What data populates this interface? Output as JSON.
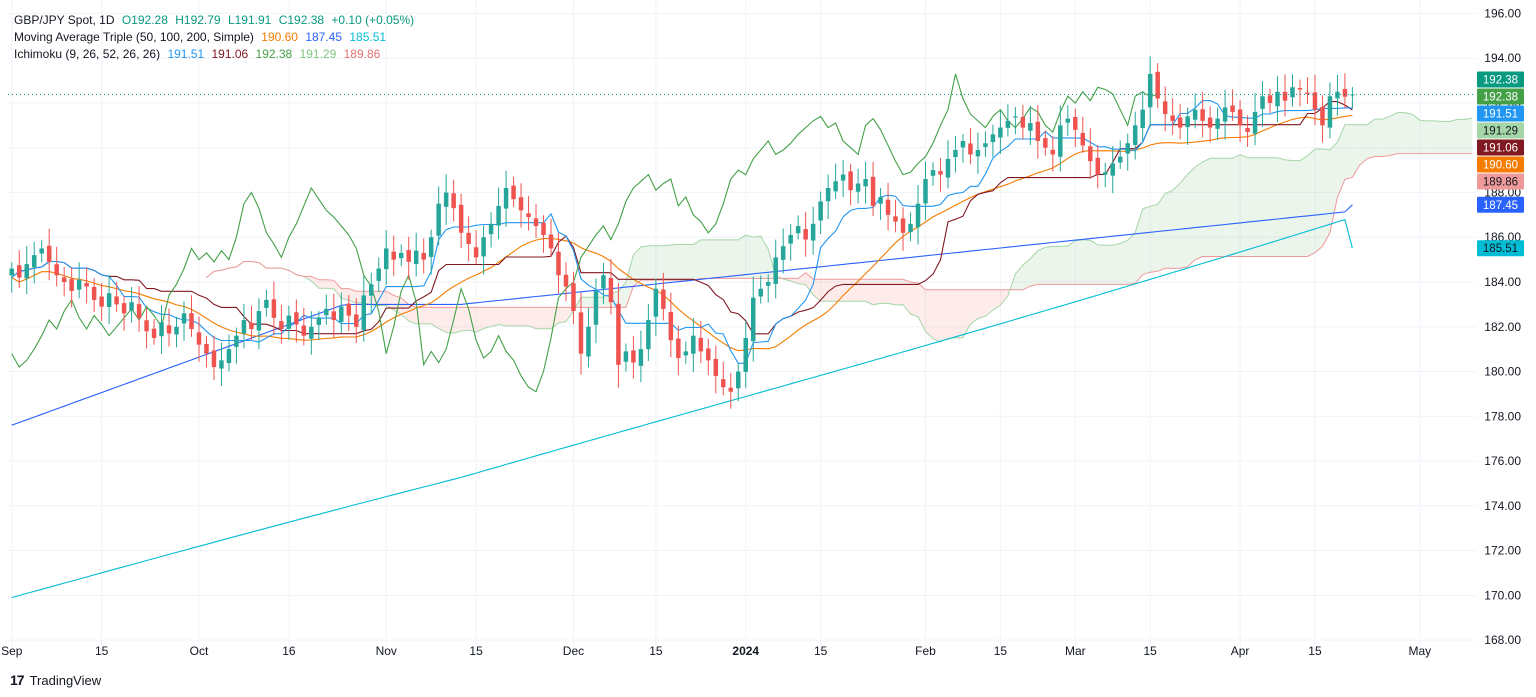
{
  "legend": {
    "symbol_line": {
      "symbol": "GBP/JPY Spot, 1D",
      "open": "O192.28",
      "high": "H192.79",
      "low": "L191.91",
      "close": "C192.38",
      "change": "+0.10 (+0.05%)"
    },
    "ma_line": {
      "title": "Moving Average Triple (50, 100, 200, Simple)",
      "v1": "190.60",
      "v2": "187.45",
      "v3": "185.51"
    },
    "ichimoku_line": {
      "title": "Ichimoku (9, 26, 52, 26, 26)",
      "v1": "191.51",
      "v2": "191.06",
      "v3": "192.38",
      "v4": "191.29",
      "v5": "189.86"
    }
  },
  "brand": {
    "logo": "17",
    "name": "TradingView"
  },
  "colors": {
    "up": "#26a69a",
    "down": "#ef5350",
    "ma50": "#f57c00",
    "ma100": "#2962ff",
    "ma200": "#00bcd4",
    "tenkan": "#2196f3",
    "kijun": "#801922",
    "chikou": "#43a047",
    "spanA": "#a5d6a7",
    "spanB": "#ef9a9a",
    "last": "#089981"
  },
  "chart_data": {
    "type": "candlestick",
    "title": "GBP/JPY Spot, 1D",
    "ylim": [
      167.2,
      196.6
    ],
    "y_ticks": [
      "196.00",
      "194.00",
      "192.00",
      "190.00",
      "188.00",
      "186.00",
      "184.00",
      "182.00",
      "180.00",
      "178.00",
      "176.00",
      "174.00",
      "172.00",
      "170.00",
      "168.00"
    ],
    "x_ticks": [
      {
        "label": "Sep",
        "bold": false,
        "day": 0
      },
      {
        "label": "15",
        "bold": false,
        "day": 12
      },
      {
        "label": "Oct",
        "bold": false,
        "day": 25
      },
      {
        "label": "16",
        "bold": false,
        "day": 37
      },
      {
        "label": "Nov",
        "bold": false,
        "day": 50
      },
      {
        "label": "15",
        "bold": false,
        "day": 62
      },
      {
        "label": "Dec",
        "bold": false,
        "day": 75
      },
      {
        "label": "15",
        "bold": false,
        "day": 86
      },
      {
        "label": "2024",
        "bold": true,
        "day": 98
      },
      {
        "label": "15",
        "bold": false,
        "day": 108
      },
      {
        "label": "Feb",
        "bold": false,
        "day": 122
      },
      {
        "label": "15",
        "bold": false,
        "day": 132
      },
      {
        "label": "Mar",
        "bold": false,
        "day": 142
      },
      {
        "label": "15",
        "bold": false,
        "day": 152
      },
      {
        "label": "Apr",
        "bold": false,
        "day": 164
      },
      {
        "label": "15",
        "bold": false,
        "day": 174
      },
      {
        "label": "May",
        "bold": false,
        "day": 188
      }
    ],
    "n_days": 196,
    "last_close": 192.38,
    "price_tags": [
      {
        "value": "192.38",
        "price": 192.38,
        "color": "#089981",
        "text": "#ffffff",
        "stack": 0
      },
      {
        "value": "192.38",
        "price": 192.38,
        "color": "#43a047",
        "text": "#ffffff",
        "stack": 1
      },
      {
        "value": "191.51",
        "price": 191.51,
        "color": "#2196f3",
        "text": "#ffffff",
        "stack": 2
      },
      {
        "value": "191.29",
        "price": 191.29,
        "color": "#a5d6a7",
        "text": "#131722",
        "stack": 3
      },
      {
        "value": "191.06",
        "price": 191.06,
        "color": "#801922",
        "text": "#ffffff",
        "stack": 4
      },
      {
        "value": "190.60",
        "price": 190.6,
        "color": "#f57c00",
        "text": "#ffffff",
        "stack": 5
      },
      {
        "value": "189.86",
        "price": 189.86,
        "color": "#ef9a9a",
        "text": "#131722",
        "stack": 6
      },
      {
        "value": "187.45",
        "price": 187.45,
        "color": "#2962ff",
        "text": "#ffffff",
        "stack": 7
      },
      {
        "value": "185.51",
        "price": 185.51,
        "color": "#00bcd4",
        "text": "#131722",
        "stack": 8
      }
    ],
    "closes": [
      184.6,
      184.2,
      184.8,
      185.2,
      185.5,
      184.9,
      184.3,
      184.0,
      183.6,
      184.1,
      183.8,
      183.2,
      182.9,
      183.5,
      183.0,
      182.6,
      183.1,
      182.4,
      181.8,
      181.5,
      182.2,
      181.7,
      182.0,
      182.6,
      181.9,
      181.2,
      180.8,
      180.2,
      180.5,
      181.0,
      181.6,
      182.3,
      181.9,
      182.7,
      183.2,
      182.4,
      181.9,
      182.5,
      182.1,
      181.6,
      182.0,
      182.4,
      182.8,
      182.3,
      182.9,
      182.5,
      182.0,
      183.4,
      183.9,
      184.6,
      185.5,
      185.0,
      185.3,
      184.9,
      185.4,
      185.0,
      186.0,
      187.5,
      188.0,
      187.3,
      186.2,
      185.7,
      185.1,
      186.0,
      186.6,
      187.4,
      188.2,
      187.7,
      187.2,
      186.9,
      186.5,
      186.1,
      185.5,
      184.3,
      183.8,
      182.7,
      180.8,
      182.0,
      183.6,
      184.3,
      183.1,
      180.3,
      180.9,
      180.4,
      181.0,
      182.3,
      183.7,
      182.8,
      181.4,
      180.6,
      180.9,
      181.6,
      180.9,
      180.5,
      179.8,
      179.3,
      179.1,
      180.0,
      181.5,
      183.3,
      183.7,
      184.0,
      185.1,
      185.6,
      186.1,
      186.5,
      185.9,
      186.6,
      187.6,
      188.2,
      188.5,
      188.8,
      188.1,
      188.4,
      188.6,
      187.4,
      187.8,
      187.0,
      186.7,
      186.2,
      186.6,
      187.5,
      188.6,
      189.0,
      188.8,
      189.5,
      189.9,
      190.3,
      189.7,
      189.9,
      190.2,
      190.6,
      190.9,
      191.2,
      191.4,
      190.9,
      191.1,
      190.3,
      190.0,
      189.7,
      191.0,
      191.3,
      190.8,
      190.1,
      189.4,
      188.8,
      188.9,
      189.3,
      189.6,
      190.2,
      191.0,
      191.7,
      193.3,
      192.2,
      191.5,
      191.2,
      190.9,
      191.4,
      191.7,
      191.2,
      190.9,
      191.3,
      191.8,
      191.6,
      191.0,
      190.7,
      191.6,
      192.3,
      192.0,
      192.5,
      192.1,
      192.7,
      192.6,
      192.4,
      191.7,
      191.0,
      192.3,
      192.5,
      192.28,
      192.38
    ],
    "series_last": {
      "ma50": 190.6,
      "ma100": 187.45,
      "ma200": 185.51,
      "tenkan": 191.51,
      "kijun": 191.06,
      "spanA_end": 191.29,
      "spanB_end": 189.86
    }
  }
}
